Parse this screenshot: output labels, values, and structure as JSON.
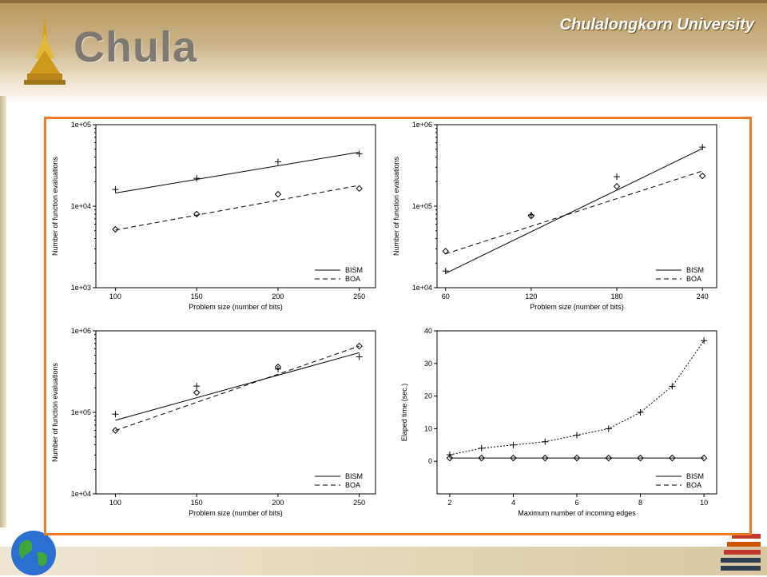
{
  "header": {
    "logo_text": "Chula",
    "university": "Chulalongkorn University"
  },
  "colors": {
    "frame": "#ee7a2a",
    "header": "#b7975c"
  },
  "icons": [
    "pagoda-icon",
    "globe-icon",
    "bars-logo-icon"
  ],
  "chart_data": [
    {
      "type": "line",
      "scale": "log",
      "x_tick_values": [
        100,
        150,
        200,
        250
      ],
      "x_tick_labels": [
        "100",
        "150",
        "200",
        "250"
      ],
      "xlim": [
        88,
        260
      ],
      "ylim": [
        1000,
        100000
      ],
      "y_tick_values": [
        1000,
        10000,
        100000
      ],
      "y_tick_labels": [
        "1e+03",
        "1e+04",
        "1e+05"
      ],
      "xlabel": "Problem size (number of bits)",
      "ylabel": "Number of function evaluations",
      "legend_position": "bottom-right",
      "series": [
        {
          "name": "BISM",
          "style": "solid",
          "line_x": [
            100,
            250
          ],
          "line_y": [
            14500,
            46000
          ],
          "points": [
            [
              100,
              16000
            ],
            [
              150,
              22000
            ],
            [
              200,
              35000
            ],
            [
              250,
              44000
            ]
          ]
        },
        {
          "name": "BOA",
          "style": "dashed",
          "line_x": [
            100,
            250
          ],
          "line_y": [
            5100,
            18000
          ],
          "points": [
            [
              100,
              5200
            ],
            [
              150,
              8000
            ],
            [
              200,
              14000
            ],
            [
              250,
              16500
            ]
          ]
        }
      ]
    },
    {
      "type": "line",
      "scale": "log",
      "x_tick_values": [
        60,
        120,
        180,
        240
      ],
      "x_tick_labels": [
        "60",
        "120",
        "180",
        "240"
      ],
      "xlim": [
        54,
        250
      ],
      "ylim": [
        10000,
        1000000
      ],
      "y_tick_values": [
        10000,
        100000,
        1000000
      ],
      "y_tick_labels": [
        "1e+04",
        "1e+05",
        "1e+06"
      ],
      "xlabel": "Problem size (number of bits)",
      "ylabel": "Number of function evaluations",
      "legend_position": "bottom-right",
      "series": [
        {
          "name": "BISM",
          "style": "solid",
          "line_x": [
            60,
            240
          ],
          "line_y": [
            15000,
            510000
          ],
          "points": [
            [
              60,
              16000
            ],
            [
              120,
              78000
            ],
            [
              180,
              230000
            ],
            [
              240,
              530000
            ]
          ]
        },
        {
          "name": "BOA",
          "style": "dashed",
          "line_x": [
            60,
            240
          ],
          "line_y": [
            26000,
            270000
          ],
          "points": [
            [
              60,
              28000
            ],
            [
              120,
              76000
            ],
            [
              180,
              175000
            ],
            [
              240,
              235000
            ]
          ]
        }
      ]
    },
    {
      "type": "line",
      "scale": "log",
      "x_tick_values": [
        100,
        150,
        200,
        250
      ],
      "x_tick_labels": [
        "100",
        "150",
        "200",
        "250"
      ],
      "xlim": [
        88,
        260
      ],
      "ylim": [
        10000,
        1000000
      ],
      "y_tick_values": [
        10000,
        100000,
        1000000
      ],
      "y_tick_labels": [
        "1e+04",
        "1e+05",
        "1e+06"
      ],
      "xlabel": "Problem size (number of bits)",
      "ylabel": "Number of function evaluations",
      "legend_position": "bottom-right",
      "series": [
        {
          "name": "BISM",
          "style": "solid",
          "line_x": [
            100,
            250
          ],
          "line_y": [
            80000,
            540000
          ],
          "points": [
            [
              100,
              95000
            ],
            [
              150,
              210000
            ],
            [
              200,
              340000
            ],
            [
              250,
              480000
            ]
          ]
        },
        {
          "name": "BOA",
          "style": "dashed",
          "line_x": [
            100,
            250
          ],
          "line_y": [
            60000,
            650000
          ],
          "points": [
            [
              100,
              60000
            ],
            [
              150,
              175000
            ],
            [
              200,
              360000
            ],
            [
              250,
              650000
            ]
          ]
        }
      ]
    },
    {
      "type": "line",
      "scale": "linear",
      "x_tick_values": [
        2,
        4,
        6,
        8,
        10
      ],
      "x_tick_labels": [
        "2",
        "4",
        "6",
        "8",
        "10"
      ],
      "xlim": [
        1.6,
        10.4
      ],
      "ylim": [
        -10,
        40
      ],
      "y_tick_values": [
        0,
        10,
        20,
        30,
        40
      ],
      "y_tick_labels": [
        "0",
        "10",
        "20",
        "30",
        "40"
      ],
      "xlabel": "Maximum number of incoming edges",
      "ylabel": "Elaped time (sec.)",
      "legend_position": "bottom-right",
      "series": [
        {
          "name": "BISM",
          "style": "solid",
          "marker": "diamond",
          "x": [
            2,
            3,
            4,
            5,
            6,
            7,
            8,
            9,
            10
          ],
          "y": [
            1,
            1,
            1,
            1,
            1,
            1,
            1,
            1,
            1
          ]
        },
        {
          "name": "BOA",
          "style": "dotted",
          "marker": "plus",
          "x": [
            2,
            3,
            4,
            5,
            6,
            7,
            8,
            9,
            10
          ],
          "y": [
            2,
            4,
            5,
            6,
            8,
            10,
            15,
            23,
            37
          ]
        }
      ]
    }
  ]
}
